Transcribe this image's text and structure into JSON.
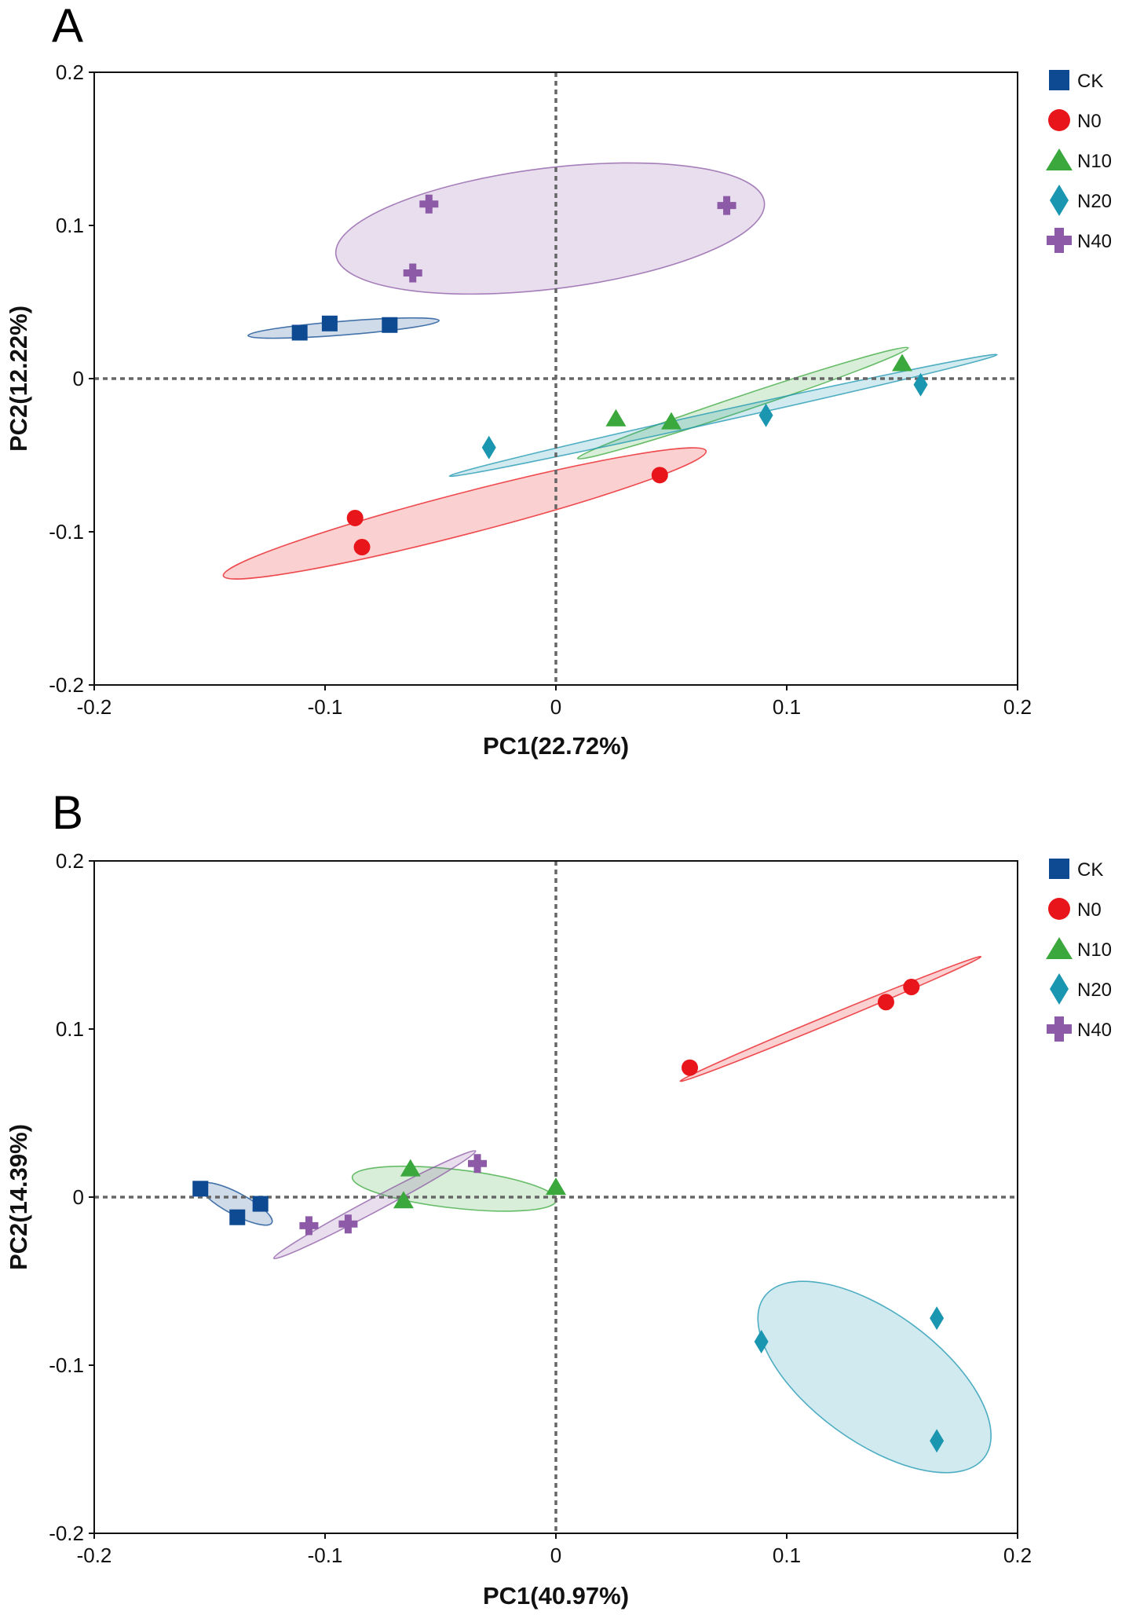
{
  "chart_data": [
    {
      "panel": "A",
      "type": "scatter",
      "xlabel": "PC1(22.72%)",
      "ylabel": "PC2(12.22%)",
      "xlim": [
        -0.2,
        0.2
      ],
      "ylim": [
        -0.2,
        0.2
      ],
      "xticks": [
        -0.2,
        -0.1,
        0,
        0.1,
        0.2
      ],
      "yticks": [
        -0.2,
        -0.1,
        0,
        0.1,
        0.2
      ],
      "xtick_labels": [
        "-0.2",
        "-0.1",
        "0",
        "0.1",
        "0.2"
      ],
      "ytick_labels": [
        "-0.2",
        "-0.1",
        "0",
        "0.1",
        "0.2"
      ],
      "reference_lines": {
        "x": 0,
        "y": 0,
        "style": "dotted"
      },
      "legend_position": "right-top",
      "series": [
        {
          "name": "CK",
          "marker": "square",
          "color": "#0d4a91",
          "points": [
            [
              -0.111,
              0.03
            ],
            [
              -0.098,
              0.036
            ],
            [
              -0.072,
              0.035
            ]
          ],
          "ellipse": {
            "cx": -0.092,
            "cy": 0.033,
            "rx": 0.0415,
            "ry": 0.0045,
            "angle_deg": 4.5
          }
        },
        {
          "name": "N0",
          "marker": "circle",
          "color": "#e8161b",
          "points": [
            [
              -0.087,
              -0.091
            ],
            [
              -0.084,
              -0.11
            ],
            [
              0.045,
              -0.063
            ]
          ],
          "ellipse": {
            "cx": -0.0395,
            "cy": -0.088,
            "rx": 0.108,
            "ry": 0.0135,
            "angle_deg": 14.5
          }
        },
        {
          "name": "N10",
          "marker": "triangle",
          "color": "#3aa83c",
          "points": [
            [
              0.026,
              -0.026
            ],
            [
              0.05,
              -0.028
            ],
            [
              0.15,
              0.01
            ]
          ],
          "ellipse": {
            "cx": 0.081,
            "cy": -0.016,
            "rx": 0.0755,
            "ry": 0.005,
            "angle_deg": 18.5
          }
        },
        {
          "name": "N20",
          "marker": "diamond",
          "color": "#1b96b0",
          "points": [
            [
              -0.029,
              -0.045
            ],
            [
              0.091,
              -0.024
            ],
            [
              0.158,
              -0.004
            ]
          ],
          "ellipse": {
            "cx": 0.0725,
            "cy": -0.024,
            "rx": 0.1215,
            "ry": 0.0035,
            "angle_deg": 12.5
          }
        },
        {
          "name": "N40",
          "marker": "cross",
          "color": "#8c5aa6",
          "points": [
            [
              -0.055,
              0.114
            ],
            [
              -0.062,
              0.069
            ],
            [
              0.074,
              0.113
            ]
          ],
          "ellipse": {
            "cx": -0.0025,
            "cy": 0.098,
            "rx": 0.0935,
            "ry": 0.0395,
            "angle_deg": 7.0
          }
        }
      ]
    },
    {
      "panel": "B",
      "type": "scatter",
      "xlabel": "PC1(40.97%)",
      "ylabel": "PC2(14.39%)",
      "xlim": [
        -0.2,
        0.2
      ],
      "ylim": [
        -0.2,
        0.2
      ],
      "xticks": [
        -0.2,
        -0.1,
        0,
        0.1,
        0.2
      ],
      "yticks": [
        -0.2,
        -0.1,
        0,
        0.1,
        0.2
      ],
      "xtick_labels": [
        "-0.2",
        "-0.1",
        "0",
        "0.1",
        "0.2"
      ],
      "ytick_labels": [
        "-0.2",
        "-0.1",
        "0",
        "0.1",
        "0.2"
      ],
      "reference_lines": {
        "x": 0,
        "y": 0,
        "style": "dotted"
      },
      "legend_position": "right-top",
      "series": [
        {
          "name": "CK",
          "marker": "square",
          "color": "#0d4a91",
          "points": [
            [
              -0.154,
              0.005
            ],
            [
              -0.138,
              -0.012
            ],
            [
              -0.128,
              -0.004
            ]
          ],
          "ellipse": {
            "cx": -0.1385,
            "cy": -0.004,
            "rx": 0.0175,
            "ry": 0.0065,
            "angle_deg": -28.0
          }
        },
        {
          "name": "N0",
          "marker": "circle",
          "color": "#e8161b",
          "points": [
            [
              0.058,
              0.077
            ],
            [
              0.143,
              0.116
            ],
            [
              0.154,
              0.125
            ]
          ],
          "ellipse": {
            "cx": 0.119,
            "cy": 0.106,
            "rx": 0.0705,
            "ry": 0.0025,
            "angle_deg": 22.5
          }
        },
        {
          "name": "N10",
          "marker": "triangle",
          "color": "#3aa83c",
          "points": [
            [
              -0.063,
              0.017
            ],
            [
              -0.066,
              -0.002
            ],
            [
              0.0,
              0.006
            ]
          ],
          "ellipse": {
            "cx": -0.044,
            "cy": 0.005,
            "rx": 0.0445,
            "ry": 0.0115,
            "angle_deg": -6.5
          }
        },
        {
          "name": "N20",
          "marker": "diamond",
          "color": "#1b96b0",
          "points": [
            [
              0.089,
              -0.086
            ],
            [
              0.165,
              -0.072
            ],
            [
              0.165,
              -0.145
            ]
          ],
          "ellipse": {
            "cx": 0.138,
            "cy": -0.107,
            "rx": 0.059,
            "ry": 0.0385,
            "angle_deg": -36.0
          }
        },
        {
          "name": "N40",
          "marker": "cross",
          "color": "#8c5aa6",
          "points": [
            [
              -0.107,
              -0.017
            ],
            [
              -0.09,
              -0.016
            ],
            [
              -0.034,
              0.02
            ]
          ],
          "ellipse": {
            "cx": -0.0785,
            "cy": -0.0045,
            "rx": 0.0495,
            "ry": 0.004,
            "angle_deg": 28.0
          }
        }
      ]
    }
  ],
  "panels": [
    {
      "label": "A"
    },
    {
      "label": "B"
    }
  ]
}
